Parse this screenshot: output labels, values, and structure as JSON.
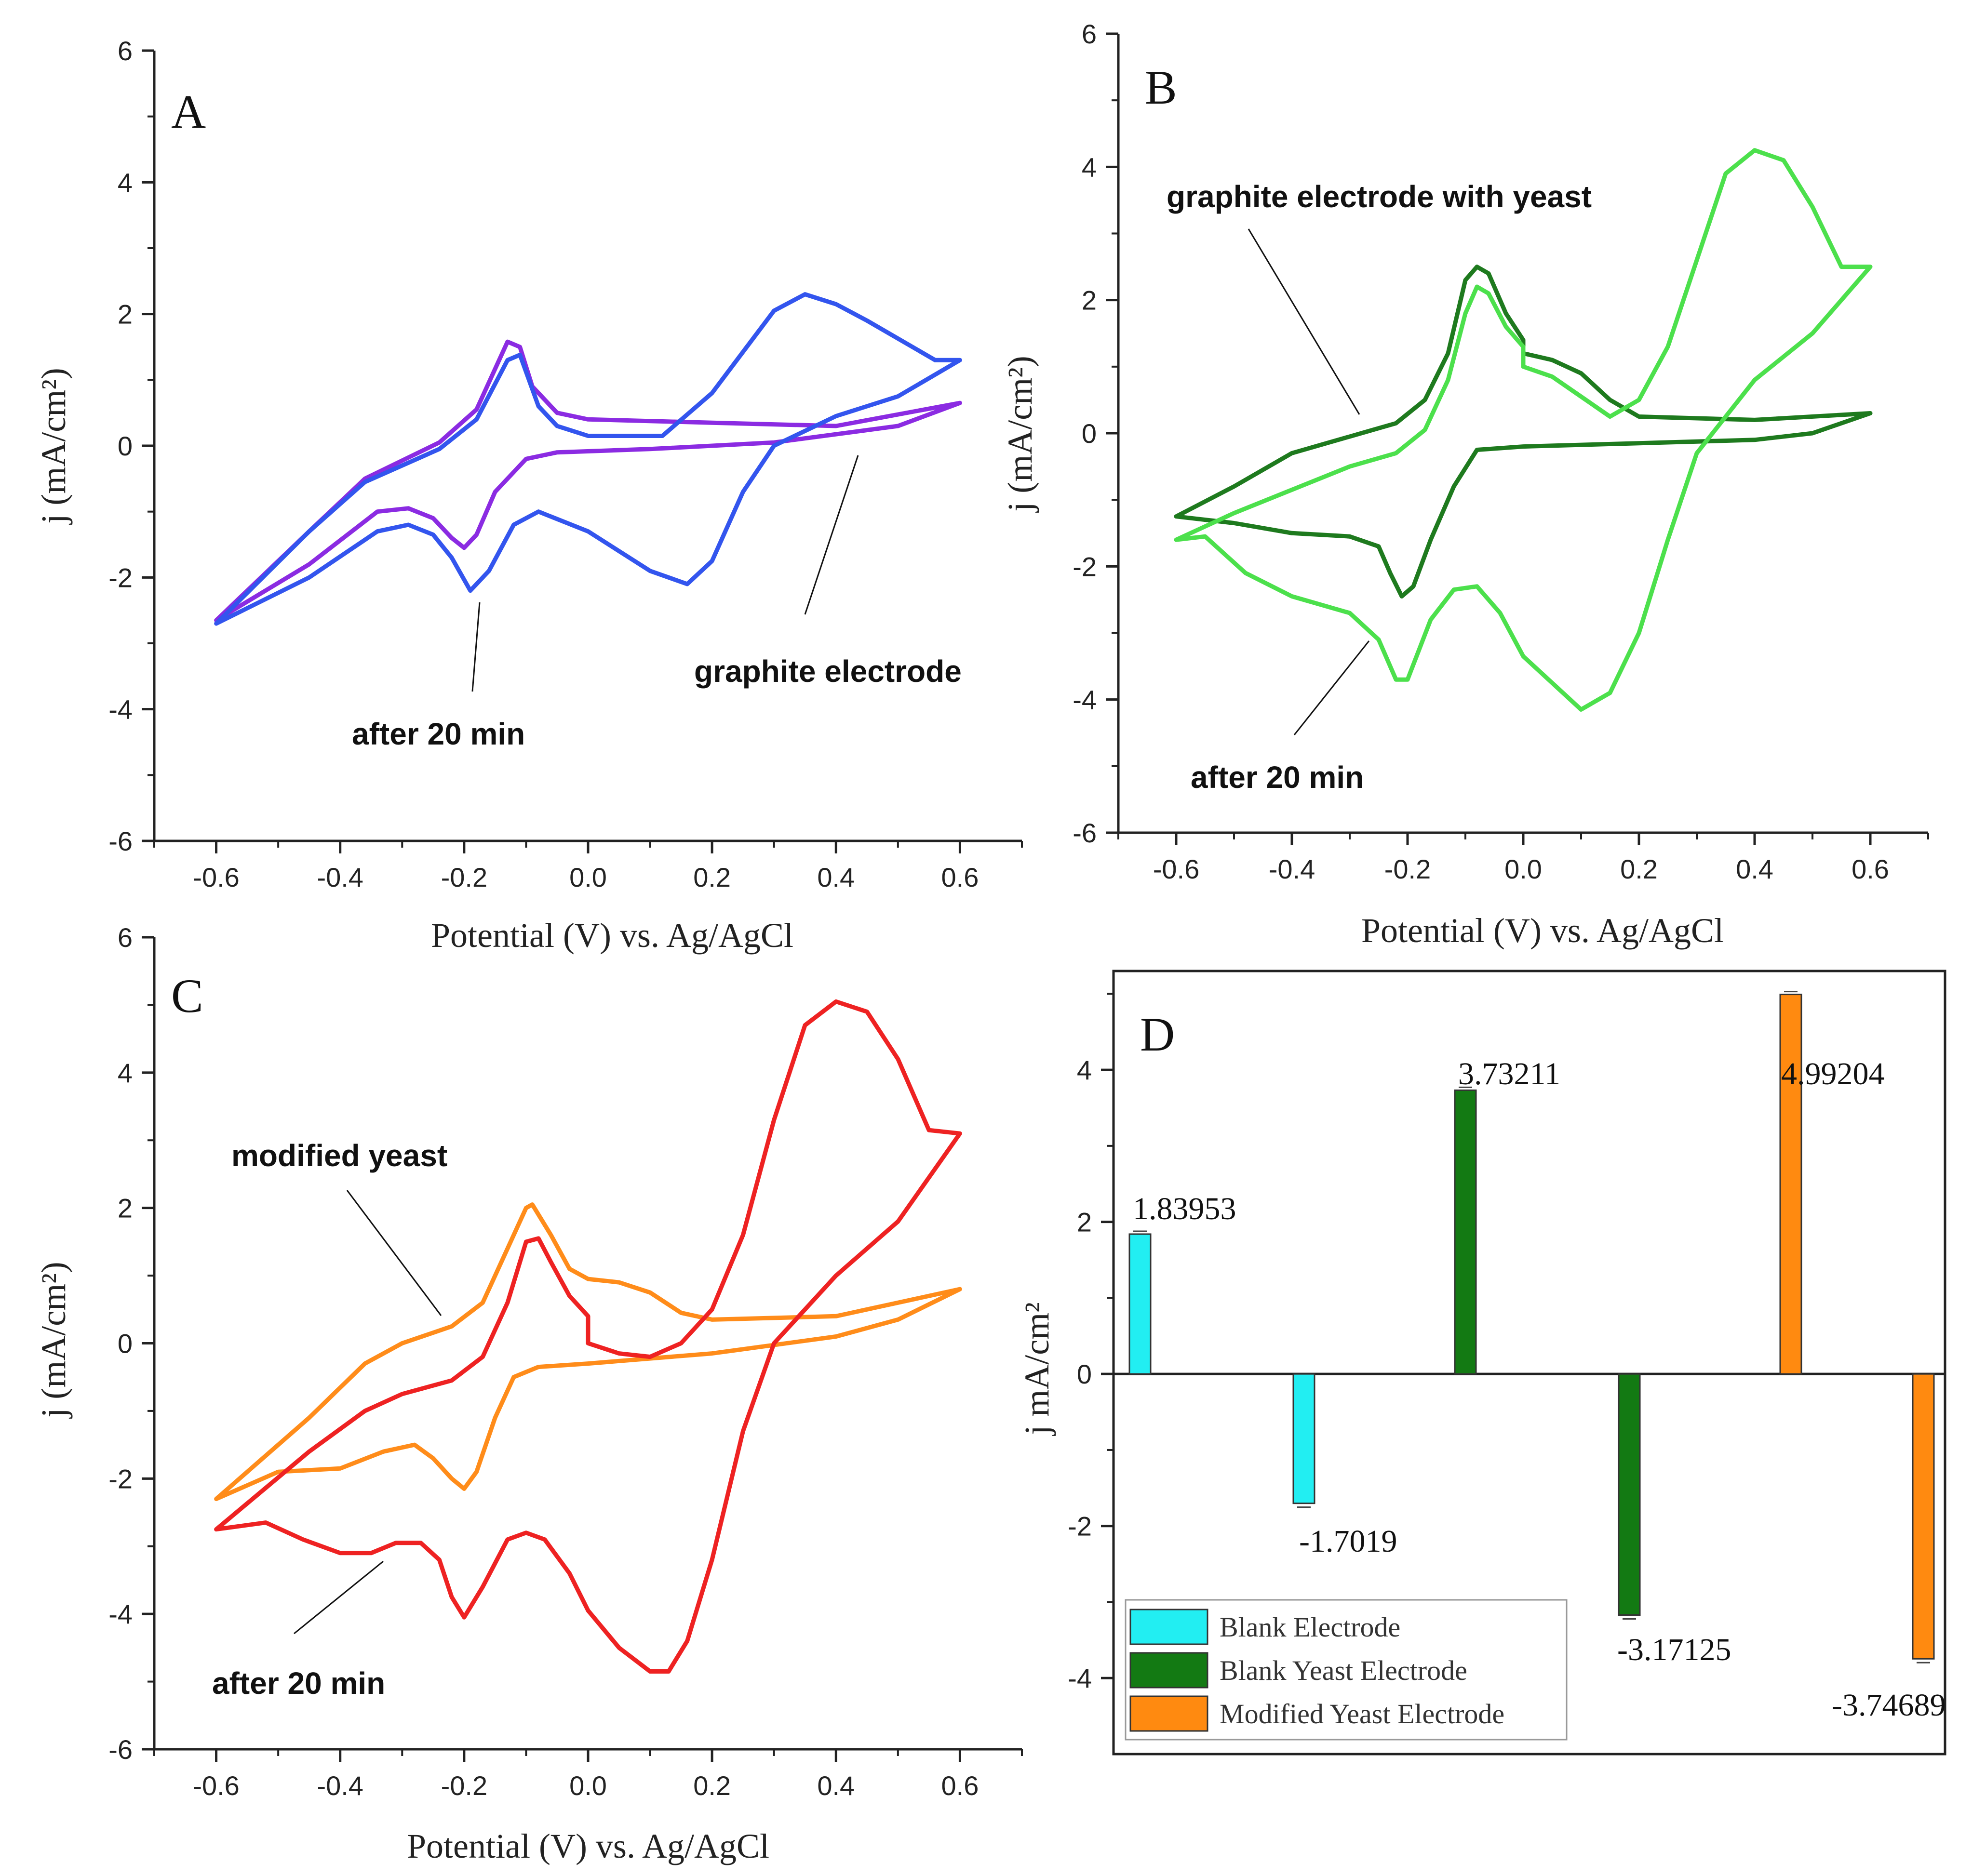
{
  "chart_data": [
    {
      "panel": "A",
      "type": "line",
      "xlabel": "Potential (V) vs. Ag/AgCl",
      "ylabel": "j (mA/cm²)",
      "xlim": [
        -0.7,
        0.7
      ],
      "ylim": [
        -6,
        6
      ],
      "xticks": [
        "-0.6",
        "-0.4",
        "-0.2",
        "0.0",
        "0.2",
        "0.4",
        "0.6"
      ],
      "yticks": [
        "-6",
        "-4",
        "-2",
        "0",
        "2",
        "4",
        "6"
      ],
      "annotations": [
        "after 20 min",
        "graphite electrode"
      ],
      "series": [
        {
          "name": "graphite electrode",
          "color": "#8b2be2",
          "x": [
            0.6,
            0.4,
            0.2,
            0.0,
            -0.05,
            -0.09,
            -0.11,
            -0.13,
            -0.18,
            -0.24,
            -0.36,
            -0.45,
            -0.6,
            -0.45,
            -0.34,
            -0.29,
            -0.25,
            -0.22,
            -0.2,
            -0.18,
            -0.15,
            -0.1,
            -0.05,
            0.1,
            0.3,
            0.5,
            0.6
          ],
          "y": [
            0.65,
            0.3,
            0.35,
            0.4,
            0.5,
            0.9,
            1.5,
            1.58,
            0.55,
            0.05,
            -0.5,
            -1.3,
            -2.65,
            -1.8,
            -1.0,
            -0.95,
            -1.1,
            -1.4,
            -1.55,
            -1.35,
            -0.7,
            -0.2,
            -0.1,
            -0.05,
            0.05,
            0.3,
            0.65
          ]
        },
        {
          "name": "after 20 min",
          "color": "#3355ee",
          "x": [
            0.6,
            0.56,
            0.45,
            0.4,
            0.35,
            0.3,
            0.2,
            0.12,
            0.05,
            0.0,
            -0.05,
            -0.08,
            -0.11,
            -0.13,
            -0.18,
            -0.24,
            -0.36,
            -0.45,
            -0.6,
            -0.45,
            -0.34,
            -0.29,
            -0.25,
            -0.22,
            -0.19,
            -0.16,
            -0.12,
            -0.08,
            0.0,
            0.1,
            0.16,
            0.2,
            0.25,
            0.3,
            0.4,
            0.5,
            0.6
          ],
          "y": [
            1.3,
            1.3,
            1.9,
            2.15,
            2.3,
            2.05,
            0.8,
            0.15,
            0.15,
            0.15,
            0.3,
            0.6,
            1.38,
            1.3,
            0.4,
            -0.05,
            -0.55,
            -1.3,
            -2.7,
            -2.0,
            -1.3,
            -1.2,
            -1.35,
            -1.7,
            -2.2,
            -1.9,
            -1.2,
            -1.0,
            -1.3,
            -1.9,
            -2.1,
            -1.75,
            -0.7,
            0.0,
            0.45,
            0.75,
            1.3
          ]
        }
      ]
    },
    {
      "panel": "B",
      "type": "line",
      "xlabel": "Potential (V) vs. Ag/AgCl",
      "ylabel": "j (mA/cm²)",
      "xlim": [
        -0.7,
        0.7
      ],
      "ylim": [
        -6,
        6
      ],
      "xticks": [
        "-0.6",
        "-0.4",
        "-0.2",
        "0.0",
        "0.2",
        "0.4",
        "0.6"
      ],
      "yticks": [
        "-6",
        "-4",
        "-2",
        "0",
        "2",
        "4",
        "6"
      ],
      "annotations": [
        "graphite electrode with yeast",
        "after 20 min"
      ],
      "series": [
        {
          "name": "graphite electrode with yeast",
          "color": "#1e7a1e",
          "x": [
            0.6,
            0.4,
            0.2,
            0.15,
            0.1,
            0.05,
            0.0,
            0.0,
            -0.03,
            -0.06,
            -0.08,
            -0.1,
            -0.13,
            -0.17,
            -0.22,
            -0.3,
            -0.4,
            -0.5,
            -0.6,
            -0.5,
            -0.4,
            -0.3,
            -0.25,
            -0.23,
            -0.21,
            -0.19,
            -0.16,
            -0.12,
            -0.08,
            0.0,
            0.2,
            0.4,
            0.5,
            0.6
          ],
          "y": [
            0.3,
            0.2,
            0.25,
            0.5,
            0.9,
            1.1,
            1.2,
            1.4,
            1.8,
            2.4,
            2.5,
            2.3,
            1.2,
            0.5,
            0.15,
            -0.05,
            -0.3,
            -0.8,
            -1.25,
            -1.35,
            -1.5,
            -1.55,
            -1.7,
            -2.1,
            -2.45,
            -2.3,
            -1.6,
            -0.8,
            -0.25,
            -0.2,
            -0.15,
            -0.1,
            0.0,
            0.3
          ]
        },
        {
          "name": "after 20 min",
          "color": "#4ce04c",
          "x": [
            0.6,
            0.55,
            0.5,
            0.45,
            0.4,
            0.35,
            0.3,
            0.25,
            0.2,
            0.15,
            0.1,
            0.05,
            0.0,
            0.0,
            -0.03,
            -0.06,
            -0.08,
            -0.1,
            -0.13,
            -0.17,
            -0.22,
            -0.3,
            -0.4,
            -0.5,
            -0.6,
            -0.55,
            -0.48,
            -0.4,
            -0.3,
            -0.25,
            -0.22,
            -0.2,
            -0.16,
            -0.12,
            -0.08,
            -0.04,
            0.0,
            0.1,
            0.15,
            0.2,
            0.25,
            0.3,
            0.4,
            0.5,
            0.6
          ],
          "y": [
            2.5,
            2.5,
            3.4,
            4.1,
            4.25,
            3.9,
            2.6,
            1.3,
            0.5,
            0.25,
            0.55,
            0.85,
            1.0,
            1.3,
            1.6,
            2.1,
            2.2,
            1.8,
            0.8,
            0.05,
            -0.3,
            -0.5,
            -0.85,
            -1.2,
            -1.6,
            -1.55,
            -2.1,
            -2.45,
            -2.7,
            -3.1,
            -3.7,
            -3.7,
            -2.8,
            -2.35,
            -2.3,
            -2.7,
            -3.35,
            -4.15,
            -3.9,
            -3.0,
            -1.6,
            -0.3,
            0.8,
            1.5,
            2.5
          ]
        }
      ]
    },
    {
      "panel": "C",
      "type": "line",
      "xlabel": "Potential (V) vs. Ag/AgCl",
      "ylabel": "j (mA/cm²)",
      "xlim": [
        -0.7,
        0.7
      ],
      "ylim": [
        -6,
        6
      ],
      "xticks": [
        "-0.6",
        "-0.4",
        "-0.2",
        "0.0",
        "0.2",
        "0.4",
        "0.6"
      ],
      "yticks": [
        "-6",
        "-4",
        "-2",
        "0",
        "2",
        "4",
        "6"
      ],
      "annotations": [
        "modified yeast",
        "after 20 min"
      ],
      "series": [
        {
          "name": "modified yeast",
          "color": "#ff8c1a",
          "x": [
            0.6,
            0.4,
            0.2,
            0.15,
            0.1,
            0.05,
            0.0,
            -0.03,
            -0.06,
            -0.09,
            -0.1,
            -0.13,
            -0.17,
            -0.22,
            -0.3,
            -0.36,
            -0.45,
            -0.6,
            -0.5,
            -0.4,
            -0.33,
            -0.28,
            -0.25,
            -0.22,
            -0.2,
            -0.18,
            -0.15,
            -0.12,
            -0.08,
            0.0,
            0.2,
            0.4,
            0.5,
            0.6
          ],
          "y": [
            0.8,
            0.4,
            0.35,
            0.45,
            0.75,
            0.9,
            0.95,
            1.1,
            1.6,
            2.05,
            2.0,
            1.4,
            0.6,
            0.25,
            0.0,
            -0.3,
            -1.1,
            -2.3,
            -1.9,
            -1.85,
            -1.6,
            -1.5,
            -1.7,
            -2.0,
            -2.15,
            -1.9,
            -1.1,
            -0.5,
            -0.35,
            -0.3,
            -0.15,
            0.1,
            0.35,
            0.8
          ]
        },
        {
          "name": "after 20 min",
          "color": "#ee2222",
          "x": [
            0.6,
            0.55,
            0.5,
            0.45,
            0.4,
            0.35,
            0.3,
            0.25,
            0.2,
            0.15,
            0.1,
            0.05,
            0.0,
            0.0,
            -0.03,
            -0.06,
            -0.08,
            -0.1,
            -0.13,
            -0.17,
            -0.22,
            -0.3,
            -0.36,
            -0.45,
            -0.6,
            -0.52,
            -0.46,
            -0.4,
            -0.35,
            -0.31,
            -0.27,
            -0.24,
            -0.22,
            -0.2,
            -0.17,
            -0.13,
            -0.1,
            -0.07,
            -0.03,
            0.0,
            0.05,
            0.1,
            0.13,
            0.16,
            0.2,
            0.25,
            0.3,
            0.4,
            0.5,
            0.6
          ],
          "y": [
            3.1,
            3.15,
            4.2,
            4.9,
            5.05,
            4.7,
            3.3,
            1.6,
            0.5,
            0.0,
            -0.2,
            -0.15,
            0.0,
            0.4,
            0.7,
            1.2,
            1.55,
            1.5,
            0.6,
            -0.2,
            -0.55,
            -0.75,
            -1.0,
            -1.6,
            -2.75,
            -2.65,
            -2.9,
            -3.1,
            -3.1,
            -2.95,
            -2.95,
            -3.2,
            -3.75,
            -4.05,
            -3.6,
            -2.9,
            -2.8,
            -2.9,
            -3.4,
            -3.95,
            -4.5,
            -4.85,
            -4.85,
            -4.4,
            -3.2,
            -1.3,
            0.0,
            1.0,
            1.8,
            3.1
          ]
        }
      ]
    },
    {
      "panel": "D",
      "type": "bar",
      "ylabel": "j mA/cm²",
      "ylim": [
        -5.0,
        5.3
      ],
      "yticks": [
        "-4",
        "-2",
        "0",
        "2",
        "4"
      ],
      "legend_position": "bottom-left",
      "series": [
        {
          "name": "Blank Electrode",
          "color": "#22eef2",
          "values": [
            1.83953,
            -1.7019
          ],
          "labels": [
            "1.83953",
            "-1.7019"
          ]
        },
        {
          "name": "Blank Yeast Electrode",
          "color": "#137a13",
          "values": [
            3.73211,
            -3.17125
          ],
          "labels": [
            "3.73211",
            "-3.17125"
          ]
        },
        {
          "name": "Modified Yeast Electrode",
          "color": "#ff8a10",
          "values": [
            4.99204,
            -3.74689
          ],
          "labels": [
            "4.99204",
            "-3.74689"
          ]
        }
      ]
    }
  ]
}
